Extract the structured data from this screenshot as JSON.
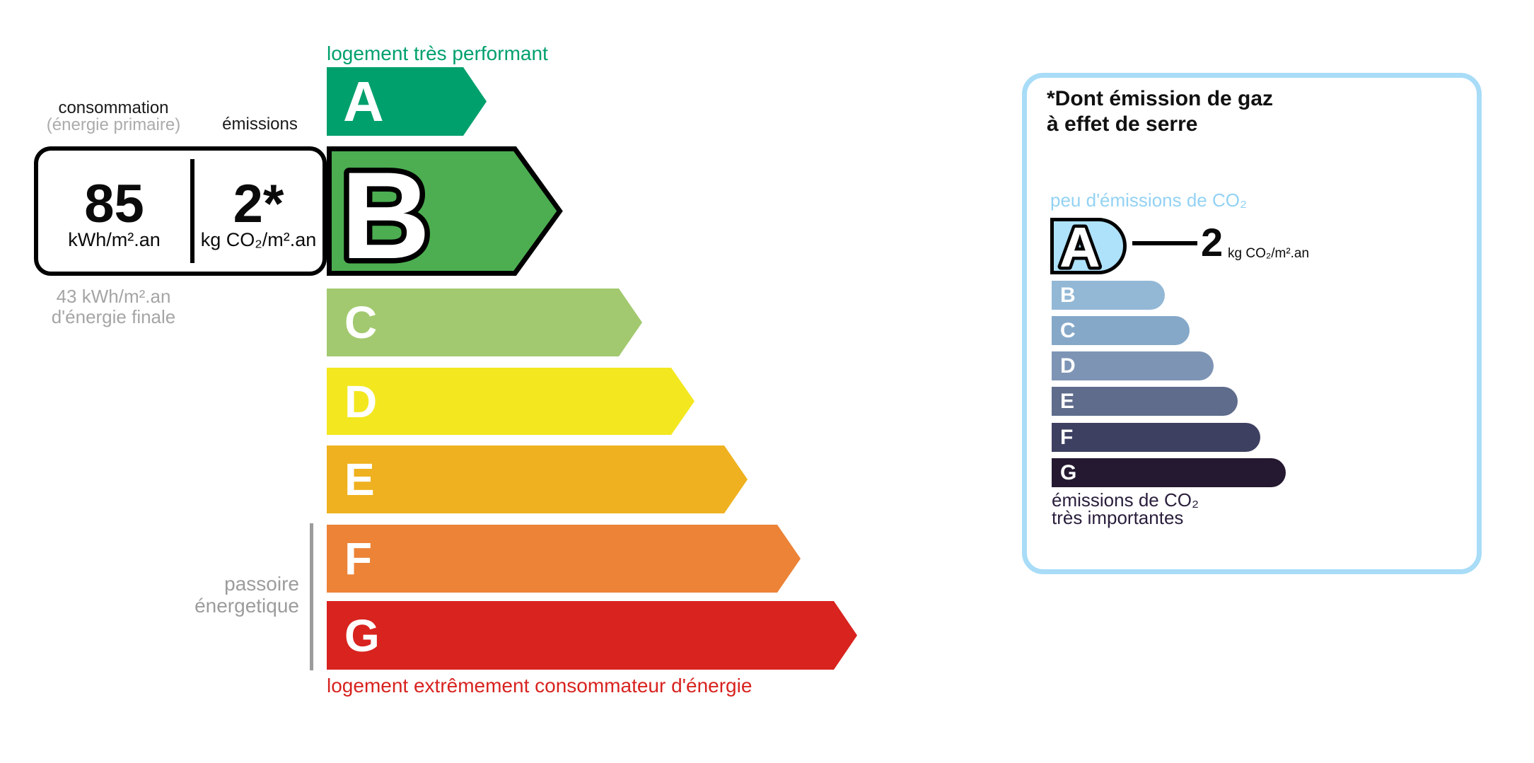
{
  "energy_scale": {
    "top_caption": "logement très performant",
    "bottom_caption": "logement extrêmement consommateur d'énergie",
    "columns": {
      "consumption_label": "consommation",
      "consumption_sub": "(énergie primaire)",
      "emissions_label": "émissions"
    },
    "reading": {
      "consumption_value": "85",
      "consumption_unit": "kWh/m².an",
      "emissions_value": "2*",
      "emissions_unit": "kg CO₂/m².an",
      "final_energy_line1": "43 kWh/m².an",
      "final_energy_line2": "d'énergie finale"
    },
    "sieve_line1": "passoire",
    "sieve_line2": "énergetique",
    "selected_grade": "B",
    "grades": [
      {
        "letter": "A",
        "color": "#00A06D",
        "selected": false
      },
      {
        "letter": "B",
        "color": "#4CAE51",
        "selected": true
      },
      {
        "letter": "C",
        "color": "#A2C96F",
        "selected": false
      },
      {
        "letter": "D",
        "color": "#F3E71F",
        "selected": false
      },
      {
        "letter": "E",
        "color": "#EFB11F",
        "selected": false
      },
      {
        "letter": "F",
        "color": "#EC8337",
        "selected": false
      },
      {
        "letter": "G",
        "color": "#D8231F",
        "selected": false
      }
    ]
  },
  "co2_panel": {
    "title_line1": "*Dont émission de gaz",
    "title_line2": "à effet de serre",
    "low_caption": "peu d'émissions de CO₂",
    "high_caption_line1": "émissions de CO₂",
    "high_caption_line2": "très importantes",
    "selected_grade": "A",
    "value": "2",
    "unit": "kg CO₂/m².an",
    "accent_border": "#A8DCF7",
    "low_caption_color": "#93D2F4",
    "high_caption_color": "#2A1E3C",
    "grades": [
      {
        "letter": "A",
        "color": "#AEE1FA",
        "selected": true
      },
      {
        "letter": "B",
        "color": "#93B8D6",
        "selected": false
      },
      {
        "letter": "C",
        "color": "#85A8C9",
        "selected": false
      },
      {
        "letter": "D",
        "color": "#7E94B5",
        "selected": false
      },
      {
        "letter": "E",
        "color": "#5F6C8C",
        "selected": false
      },
      {
        "letter": "F",
        "color": "#3D4061",
        "selected": false
      },
      {
        "letter": "G",
        "color": "#251931",
        "selected": false
      }
    ]
  }
}
